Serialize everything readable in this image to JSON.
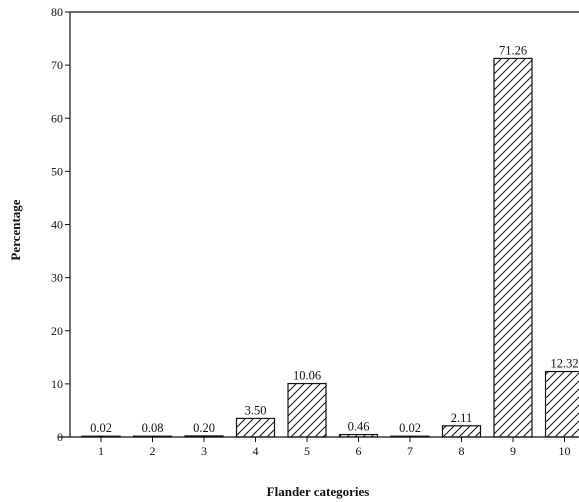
{
  "chart_data": {
    "type": "bar",
    "title": "",
    "xlabel": "Flander categories",
    "ylabel": "Percentage",
    "ylim": [
      0,
      80
    ],
    "yticks": [
      0,
      10,
      20,
      30,
      40,
      50,
      60,
      70,
      80
    ],
    "categories": [
      "1",
      "2",
      "3",
      "4",
      "5",
      "6",
      "7",
      "8",
      "9",
      "10"
    ],
    "values": [
      0.02,
      0.08,
      0.2,
      3.5,
      10.06,
      0.46,
      0.02,
      2.11,
      71.26,
      12.32
    ],
    "value_labels": [
      "0.02",
      "0.08",
      "0.20",
      "3.50",
      "10.06",
      "0.46",
      "0.02",
      "2.11",
      "71.26",
      "12.32"
    ],
    "bar_fill": "diagonal hatch",
    "grid": false,
    "colors": {
      "ink": "#111111",
      "background": "#ffffff"
    }
  }
}
